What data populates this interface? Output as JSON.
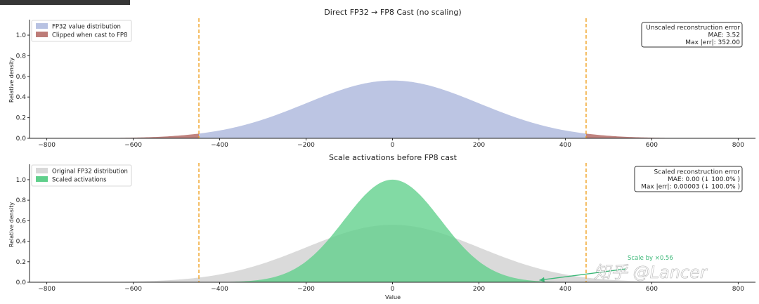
{
  "chart_data": [
    {
      "type": "area",
      "title": "Direct FP32 → FP8 Cast (no scaling)",
      "xlabel": "",
      "ylabel": "Relative density",
      "xlim": [
        -840,
        840
      ],
      "ylim": [
        0,
        1.15
      ],
      "xticks": [
        "−800",
        "−600",
        "−400",
        "−200",
        "0",
        "200",
        "400",
        "600",
        "800"
      ],
      "yticks": [
        "0.0",
        "0.2",
        "0.4",
        "0.6",
        "0.8",
        "1.0"
      ],
      "fp8_range": [
        -448,
        448
      ],
      "series": [
        {
          "name": "FP32 value distribution",
          "kind": "gaussian",
          "mean": 0,
          "std": 200,
          "peak": 0.56,
          "range": [
            -448,
            448
          ],
          "color": "#b8c2e2"
        },
        {
          "name": "Clipped when cast to FP8",
          "kind": "gaussian",
          "mean": 0,
          "std": 200,
          "peak": 0.56,
          "range": [
            "outside",
            -448,
            448
          ],
          "color": "#bd7c78"
        }
      ],
      "legend_position": "top-left",
      "annotation": {
        "position": "top-right",
        "lines": [
          "Unscaled reconstruction error",
          "MAE: 3.52",
          "Max |err|: 352.00"
        ]
      }
    },
    {
      "type": "area",
      "title": "Scale activations before FP8 cast",
      "xlabel": "Value",
      "ylabel": "Relative density",
      "xlim": [
        -840,
        840
      ],
      "ylim": [
        0,
        1.15
      ],
      "xticks": [
        "−800",
        "−600",
        "−400",
        "−200",
        "0",
        "200",
        "400",
        "600",
        "800"
      ],
      "yticks": [
        "0.0",
        "0.2",
        "0.4",
        "0.6",
        "0.8",
        "1.0"
      ],
      "fp8_range": [
        -448,
        448
      ],
      "series": [
        {
          "name": "Original FP32 distribution",
          "kind": "gaussian",
          "mean": 0,
          "std": 200,
          "peak": 0.56,
          "color": "#d8d8d8"
        },
        {
          "name": "Scaled activations",
          "kind": "gaussian",
          "mean": 0,
          "std": 112,
          "peak": 1.0,
          "color": "#5fcf8b"
        }
      ],
      "legend_position": "top-left",
      "annotation": {
        "position": "top-right",
        "lines": [
          "Scaled reconstruction error",
          "MAE: 0.00  (↓ 100.0% )",
          "Max |err|: 0.00003  (↓ 100.0% )"
        ]
      },
      "arrow": {
        "label": "Scale by ×0.56",
        "from": [
          540,
          0.13
        ],
        "to": [
          340,
          0.02
        ],
        "color": "#3cb878"
      }
    }
  ],
  "watermark": "知乎 @Lancer"
}
